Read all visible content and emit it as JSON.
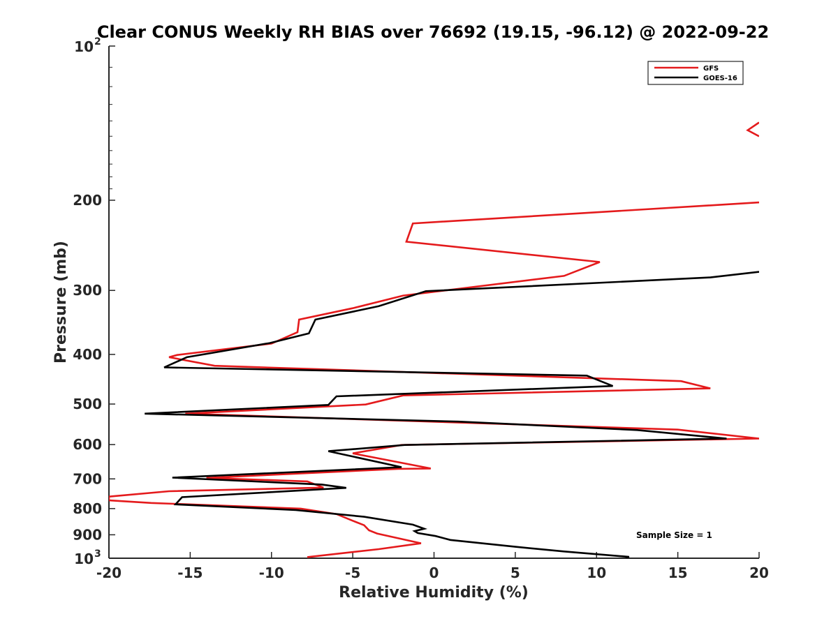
{
  "chart_data": {
    "type": "line",
    "title": "Clear CONUS Weekly RH BIAS over 76692 (19.15, -96.12) @ 2022-09-22",
    "xlabel": "Relative Humidity (%)",
    "ylabel": "Pressure (mb)",
    "xlim": [
      -20,
      20
    ],
    "ylim": [
      100,
      1000
    ],
    "yscale": "log",
    "y_reversed": true,
    "x_ticks": [
      -20,
      -15,
      -10,
      -5,
      0,
      5,
      10,
      15,
      20
    ],
    "x_tick_labels": [
      "-20",
      "-15",
      "-10",
      "-5",
      "0",
      "5",
      "10",
      "15",
      "20"
    ],
    "y_ticks": [
      200,
      300,
      400,
      500,
      600,
      700,
      800,
      900
    ],
    "y_tick_labels": [
      "200",
      "300",
      "400",
      "500",
      "600",
      "700",
      "800",
      "900"
    ],
    "y_top_label": {
      "base": "10",
      "exp": "2"
    },
    "y_bottom_label": {
      "base": "10",
      "exp": "3"
    },
    "legend_position": "top-right",
    "annotation": "Sample Size = 1",
    "series": [
      {
        "name": "GFS",
        "color": "#e41a1c",
        "points": [
          [
            20,
            141
          ],
          [
            19.3,
            146
          ],
          [
            20,
            150
          ],
          null,
          [
            20,
            202
          ],
          [
            -1.3,
            222
          ],
          [
            -1.7,
            241
          ],
          [
            10.2,
            264
          ],
          [
            8,
            281
          ],
          [
            -1.9,
            307
          ],
          [
            -5,
            325
          ],
          [
            -8.3,
            342
          ],
          [
            -8.4,
            362
          ],
          [
            -10,
            381
          ],
          [
            -15.8,
            401
          ],
          [
            -16.3,
            405
          ],
          [
            -13.5,
            421
          ],
          [
            15.2,
            451
          ],
          [
            17,
            466
          ],
          [
            -1.9,
            481
          ],
          [
            -4.2,
            501
          ],
          [
            -15.3,
            522
          ],
          [
            15,
            561
          ],
          [
            20,
            584
          ],
          [
            -2,
            601
          ],
          [
            -5,
            624
          ],
          [
            -0.2,
            668
          ],
          [
            -2.2,
            669
          ],
          [
            -14,
            697
          ],
          [
            -7.8,
            708
          ],
          [
            -6.8,
            728
          ],
          [
            -16.3,
            740
          ],
          [
            -20,
            758
          ],
          [
            -20,
            771
          ],
          [
            -17.4,
            780
          ],
          [
            -8.2,
            800
          ],
          [
            -6,
            820
          ],
          [
            -5,
            845
          ],
          [
            -4.3,
            862
          ],
          [
            -4,
            882
          ],
          [
            -3.5,
            895
          ],
          [
            -0.8,
            935
          ],
          [
            -3.4,
            960
          ],
          [
            -7.8,
            995
          ]
        ]
      },
      {
        "name": "GOES-16",
        "color": "#000000",
        "points": [
          [
            20,
            276
          ],
          [
            17,
            283
          ],
          [
            -0.5,
            301
          ],
          [
            -3.4,
            322
          ],
          [
            -7.3,
            342
          ],
          [
            -7.7,
            364
          ],
          [
            -10.1,
            380
          ],
          [
            -15.2,
            405
          ],
          [
            -16.6,
            424
          ],
          [
            9.4,
            440
          ],
          [
            11,
            461
          ],
          [
            -6,
            483
          ],
          [
            -6.5,
            502
          ],
          [
            -17.8,
            522
          ],
          [
            1.5,
            541
          ],
          [
            12.5,
            562
          ],
          [
            18,
            584
          ],
          [
            -1.8,
            601
          ],
          [
            -6.5,
            618
          ],
          [
            -2,
            664
          ],
          [
            -16.1,
            696
          ],
          [
            -6.9,
            718
          ],
          [
            -5.4,
            729
          ],
          [
            -15.5,
            760
          ],
          [
            -15.9,
            785
          ],
          [
            -8.5,
            805
          ],
          [
            -4.3,
            830
          ],
          [
            -1.3,
            860
          ],
          [
            -0.6,
            876
          ],
          [
            -1.2,
            885
          ],
          [
            -1,
            893
          ],
          [
            0.1,
            905
          ],
          [
            1,
            921
          ],
          [
            5,
            950
          ],
          [
            8,
            970
          ],
          [
            12,
            994
          ],
          [
            11.8,
            1000
          ]
        ]
      }
    ]
  }
}
